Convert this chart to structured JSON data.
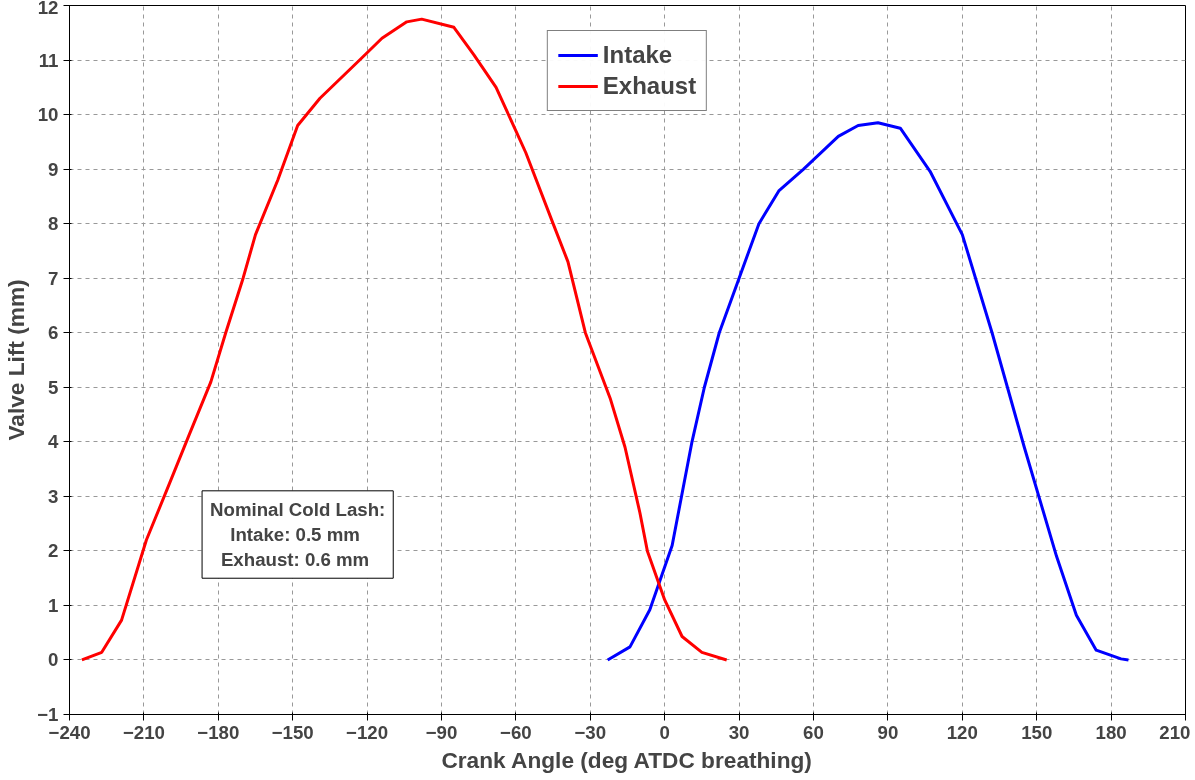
{
  "chart_data": {
    "type": "line",
    "xlabel": "Crank Angle (deg ATDC breathing)",
    "ylabel": "Valve Lift (mm)",
    "xlim": [
      -240,
      210
    ],
    "xticks": [
      -240,
      -210,
      -180,
      -150,
      -120,
      -90,
      -60,
      -30,
      0,
      30,
      60,
      90,
      120,
      150,
      180,
      210
    ],
    "ylim": [
      -1,
      12
    ],
    "yticks": [
      -1,
      0,
      1,
      2,
      3,
      4,
      5,
      6,
      7,
      8,
      9,
      10,
      11,
      12
    ],
    "grid": true,
    "legend": "top",
    "line_style": "solid",
    "annotations": [
      "Nominal Cold Lash:\nIntake:  0.5 mm\nExhaust:  0.6 mm"
    ],
    "series": [
      {
        "name": "Intake",
        "color": "#0000ff",
        "x": [
          -23,
          -14,
          -6,
          3,
          11,
          16,
          22,
          30,
          38,
          46,
          56,
          70,
          78,
          86,
          95,
          107,
          120,
          132,
          145,
          158,
          166,
          174,
          184,
          187
        ],
        "values": [
          0,
          0.24,
          0.92,
          2.1,
          4.0,
          5.0,
          6.0,
          7.0,
          8.0,
          8.6,
          9.0,
          9.6,
          9.8,
          9.85,
          9.75,
          8.96,
          7.8,
          6.0,
          3.9,
          1.9,
          0.82,
          0.18,
          0.02,
          0
        ]
      },
      {
        "name": "Exhaust",
        "color": "#ff0000",
        "x": [
          -235,
          -227,
          -219,
          -209,
          -200,
          -192,
          -183,
          -177,
          -170,
          -165,
          -156,
          -148,
          -139,
          -123,
          -114,
          -104,
          -98,
          -85,
          -77,
          -68,
          -60,
          -56,
          -45,
          -39,
          -32,
          -22,
          -16,
          -10,
          -7,
          0,
          7,
          15,
          25
        ],
        "values": [
          0,
          0.14,
          0.73,
          2.2,
          3.2,
          4.1,
          5.1,
          6.0,
          7.0,
          7.8,
          8.8,
          9.8,
          10.3,
          11.0,
          11.4,
          11.7,
          11.75,
          11.6,
          11.1,
          10.5,
          9.7,
          9.3,
          8.0,
          7.3,
          6.0,
          4.8,
          3.9,
          2.7,
          2.0,
          1.1,
          0.43,
          0.14,
          0
        ]
      }
    ]
  }
}
